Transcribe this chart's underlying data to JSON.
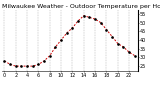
{
  "title": "Milwaukee Weather - Outdoor Temperature per Hour (Last 24 Hours)",
  "x": [
    0,
    1,
    2,
    3,
    4,
    5,
    6,
    7,
    8,
    9,
    10,
    11,
    12,
    13,
    14,
    15,
    16,
    17,
    18,
    19,
    20,
    21,
    22,
    23
  ],
  "y": [
    28,
    26,
    25,
    25,
    25,
    25,
    26,
    28,
    31,
    36,
    40,
    44,
    47,
    51,
    54,
    53,
    52,
    50,
    46,
    42,
    38,
    36,
    33,
    31
  ],
  "line_color": "#cc0000",
  "marker_color": "#000000",
  "bg_color": "#ffffff",
  "grid_color": "#888888",
  "ylim": [
    22,
    57
  ],
  "yticks": [
    25,
    30,
    35,
    40,
    45,
    50,
    55
  ],
  "title_fontsize": 4.5,
  "tick_fontsize": 3.5
}
